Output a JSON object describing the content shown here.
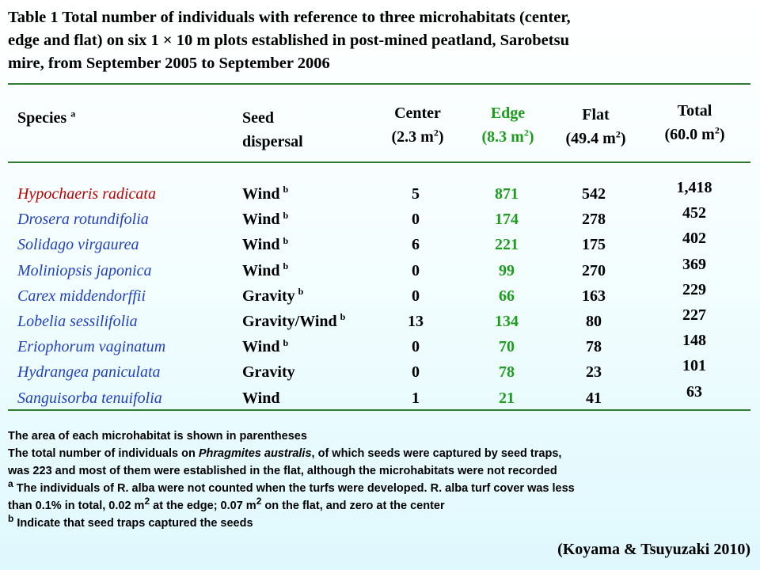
{
  "caption": {
    "line1": "Table 1 Total number of individuals with reference to three microhabitats (center,",
    "line2": "edge and flat) on six 1  ×  10 m plots established in post-mined peatland, Sarobetsu",
    "line3": "mire, from September 2005 to September 2006"
  },
  "headers": {
    "species": "Species",
    "species_sup": "a",
    "seed_line1": "Seed",
    "seed_line2": "dispersal",
    "center_line1": "Center",
    "center_line2": "(2.3 m",
    "center_unit_sup": "2",
    "center_close": ")",
    "edge_line1": "Edge",
    "edge_line2": "(8.3 m",
    "edge_unit_sup": "2",
    "edge_close": ")",
    "flat_line1": "Flat",
    "flat_line2": "(49.4 m",
    "flat_unit_sup": "2",
    "flat_close": ")",
    "total_line1": "Total",
    "total_line2": "(60.0 m",
    "total_unit_sup": "2",
    "total_close": ")"
  },
  "colors": {
    "species_first": "#c00000",
    "species_other": "#1f3fbf",
    "edge": "#1e9c1e",
    "rule": "#2e7d32"
  },
  "rows": [
    {
      "species": "Hypochaeris radicata",
      "dispersal": "Wind",
      "sup": "b",
      "center": "5",
      "edge": "871",
      "flat": "542",
      "total": "1,418"
    },
    {
      "species": "Drosera rotundifolia",
      "dispersal": "Wind",
      "sup": "b",
      "center": "0",
      "edge": "174",
      "flat": "278",
      "total": "452"
    },
    {
      "species": "Solidago virgaurea",
      "dispersal": "Wind",
      "sup": "b",
      "center": "6",
      "edge": "221",
      "flat": "175",
      "total": "402"
    },
    {
      "species": "Moliniopsis japonica",
      "dispersal": "Wind",
      "sup": "b",
      "center": "0",
      "edge": "99",
      "flat": "270",
      "total": "369"
    },
    {
      "species": "Carex middendorffii",
      "dispersal": "Gravity",
      "sup": "b",
      "center": "0",
      "edge": "66",
      "flat": "163",
      "total": "229"
    },
    {
      "species": "Lobelia sessilifolia",
      "dispersal": "Gravity/Wind",
      "sup": "b",
      "center": "13",
      "edge": "134",
      "flat": "80",
      "total": "227"
    },
    {
      "species": "Eriophorum vaginatum",
      "dispersal": "Wind",
      "sup": "b",
      "center": "0",
      "edge": "70",
      "flat": "78",
      "total": "148"
    },
    {
      "species": "Hydrangea paniculata",
      "dispersal": "Gravity",
      "sup": "",
      "center": "0",
      "edge": "78",
      "flat": "23",
      "total": "101"
    },
    {
      "species": "Sanguisorba tenuifolia",
      "dispersal": "Wind",
      "sup": "",
      "center": "1",
      "edge": "21",
      "flat": "41",
      "total": "63"
    }
  ],
  "notes": {
    "n1": "The area of each microhabitat is shown in parentheses",
    "n2a": "The total number of individuals on ",
    "n2b": "Phragmites australis",
    "n2c": ", of which seeds were captured by seed traps,",
    "n3": "was 223 and most of them were established in the flat, although the microhabitats were not recorded",
    "n4_sup": "a",
    "n4": " The individuals of R. alba were not counted when the turfs were developed. R. alba turf cover was less",
    "n5a": "than 0.1% in total, 0.02 m",
    "n5b": "2",
    "n5c": " at the edge; 0.07 m",
    "n5d": "2",
    "n5e": " on the flat, and zero at the center",
    "n6_sup": "b",
    "n6": " Indicate that seed traps captured the seeds"
  },
  "citation": "(Koyama & Tsuyuzaki 2010)"
}
